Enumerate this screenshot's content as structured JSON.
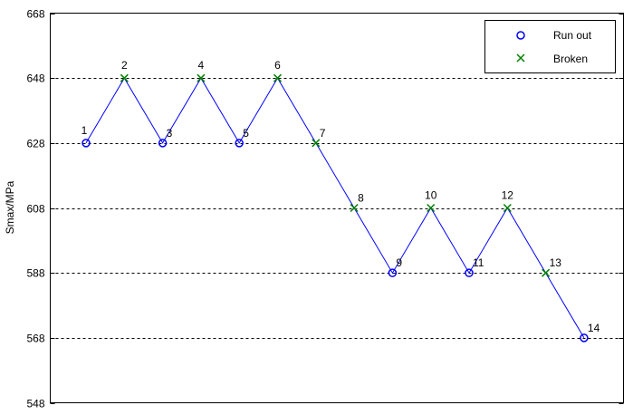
{
  "chart_data": {
    "type": "line",
    "title": "",
    "xlabel": "",
    "ylabel": "Smax/MPa",
    "ylim": [
      548,
      668
    ],
    "yticks": [
      548,
      568,
      588,
      608,
      628,
      648,
      668
    ],
    "grid": "horizontal dashed",
    "legend_position": "top-right",
    "points": [
      {
        "label": "1",
        "x": 1,
        "y": 628,
        "status": "Run out"
      },
      {
        "label": "2",
        "x": 2,
        "y": 648,
        "status": "Broken"
      },
      {
        "label": "3",
        "x": 3,
        "y": 628,
        "status": "Run out"
      },
      {
        "label": "4",
        "x": 4,
        "y": 648,
        "status": "Broken"
      },
      {
        "label": "5",
        "x": 5,
        "y": 628,
        "status": "Run out"
      },
      {
        "label": "6",
        "x": 6,
        "y": 648,
        "status": "Broken"
      },
      {
        "label": "7",
        "x": 7,
        "y": 628,
        "status": "Broken"
      },
      {
        "label": "8",
        "x": 8,
        "y": 608,
        "status": "Broken"
      },
      {
        "label": "9",
        "x": 9,
        "y": 588,
        "status": "Run out"
      },
      {
        "label": "10",
        "x": 10,
        "y": 608,
        "status": "Broken"
      },
      {
        "label": "11",
        "x": 11,
        "y": 588,
        "status": "Run out"
      },
      {
        "label": "12",
        "x": 12,
        "y": 608,
        "status": "Broken"
      },
      {
        "label": "13",
        "x": 13,
        "y": 588,
        "status": "Broken"
      },
      {
        "label": "14",
        "x": 14,
        "y": 568,
        "status": "Run out"
      }
    ],
    "legend": [
      {
        "name": "Run out",
        "marker": "circle",
        "color": "#0000ff"
      },
      {
        "name": "Broken",
        "marker": "x",
        "color": "#008000"
      }
    ],
    "line_color": "#0000ff"
  }
}
